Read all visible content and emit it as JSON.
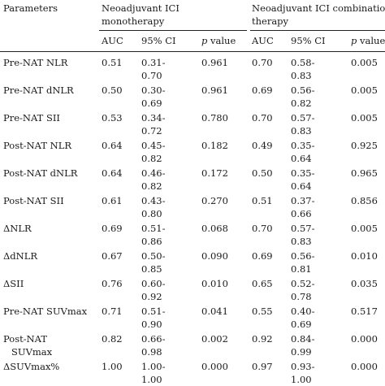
{
  "table": {
    "col_parameters": "Parameters",
    "group1_title": [
      "Neoadjuvant ICI",
      "monotherapy"
    ],
    "group2_title": [
      "Neoadjuvant ICI combination",
      "therapy"
    ],
    "sub_auc": "AUC",
    "sub_ci": "95% CI",
    "sub_p_italic": "p",
    "sub_p_rest": " value",
    "rows": [
      {
        "param": [
          "Pre-NAT NLR"
        ],
        "auc1": "0.51",
        "ci1": [
          "0.31-",
          "0.70"
        ],
        "p1": "0.961",
        "auc2": "0.70",
        "ci2": [
          "0.58-",
          "0.83"
        ],
        "p2": "0.005"
      },
      {
        "param": [
          "Pre-NAT dNLR"
        ],
        "auc1": "0.50",
        "ci1": [
          "0.30-",
          "0.69"
        ],
        "p1": "0.961",
        "auc2": "0.69",
        "ci2": [
          "0.56-",
          "0.82"
        ],
        "p2": "0.005"
      },
      {
        "param": [
          "Pre-NAT SII"
        ],
        "auc1": "0.53",
        "ci1": [
          "0.34-",
          "0.72"
        ],
        "p1": "0.780",
        "auc2": "0.70",
        "ci2": [
          "0.57-",
          "0.83"
        ],
        "p2": "0.005"
      },
      {
        "param": [
          "Post-NAT NLR"
        ],
        "auc1": "0.64",
        "ci1": [
          "0.45-",
          "0.82"
        ],
        "p1": "0.182",
        "auc2": "0.49",
        "ci2": [
          "0.35-",
          "0.64"
        ],
        "p2": "0.925"
      },
      {
        "param": [
          "Post-NAT dNLR"
        ],
        "auc1": "0.64",
        "ci1": [
          "0.46-",
          "0.82"
        ],
        "p1": "0.172",
        "auc2": "0.50",
        "ci2": [
          "0.35-",
          "0.64"
        ],
        "p2": "0.965"
      },
      {
        "param": [
          "Post-NAT SII"
        ],
        "auc1": "0.61",
        "ci1": [
          "0.43-",
          "0.80"
        ],
        "p1": "0.270",
        "auc2": "0.51",
        "ci2": [
          "0.37-",
          "0.66"
        ],
        "p2": "0.856"
      },
      {
        "param": [
          "ΔNLR"
        ],
        "auc1": "0.69",
        "ci1": [
          "0.51-",
          "0.86"
        ],
        "p1": "0.068",
        "auc2": "0.70",
        "ci2": [
          "0.57-",
          "0.83"
        ],
        "p2": "0.005"
      },
      {
        "param": [
          "ΔdNLR"
        ],
        "auc1": "0.67",
        "ci1": [
          "0.50-",
          "0.85"
        ],
        "p1": "0.090",
        "auc2": "0.69",
        "ci2": [
          "0.56-",
          "0.81"
        ],
        "p2": "0.010"
      },
      {
        "param": [
          "ΔSII"
        ],
        "auc1": "0.76",
        "ci1": [
          "0.60-",
          "0.92"
        ],
        "p1": "0.010",
        "auc2": "0.65",
        "ci2": [
          "0.52-",
          "0.78"
        ],
        "p2": "0.035"
      },
      {
        "param": [
          "Pre-NAT SUVmax"
        ],
        "auc1": "0.71",
        "ci1": [
          "0.51-",
          "0.90"
        ],
        "p1": "0.041",
        "auc2": "0.55",
        "ci2": [
          "0.40-",
          "0.69"
        ],
        "p2": "0.517"
      },
      {
        "param": [
          "Post-NAT",
          "SUVmax"
        ],
        "auc1": "0.82",
        "ci1": [
          "0.66-",
          "0.98"
        ],
        "p1": "0.002",
        "auc2": "0.92",
        "ci2": [
          "0.84-",
          "0.99"
        ],
        "p2": "0.000"
      },
      {
        "param": [
          "ΔSUVmax%"
        ],
        "auc1": "1.00",
        "ci1": [
          "1.00-",
          "1.00"
        ],
        "p1": "0.000",
        "auc2": "0.97",
        "ci2": [
          "0.93-",
          "1.00"
        ],
        "p2": "0.000"
      }
    ]
  }
}
